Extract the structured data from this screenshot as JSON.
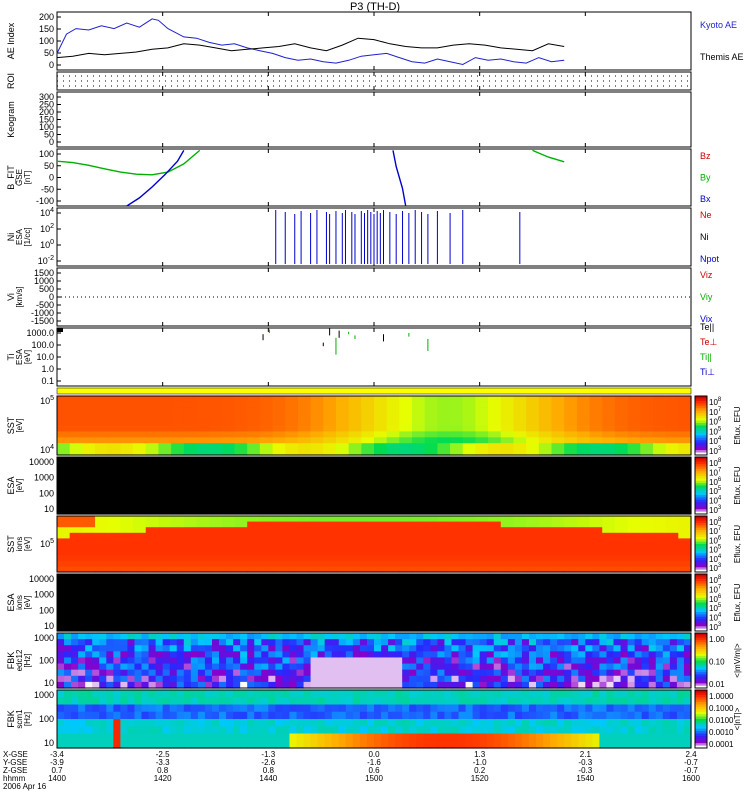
{
  "title": "P3 (TH-D)",
  "colors": {
    "kyoto": "#1f1fd0",
    "themis": "#000000",
    "red": "#cc0000",
    "green": "#00b000",
    "blue": "#0000cc",
    "frame": "#000000"
  },
  "chart_data": [
    {
      "type": "line",
      "panel": "ae",
      "ylabel": "AE Index",
      "yticks": [
        "200",
        "150",
        "100",
        "50",
        "0"
      ],
      "ylim": [
        0,
        210
      ],
      "legend": [
        "Kyoto AE",
        "Themis AE"
      ],
      "series": [
        {
          "name": "Kyoto AE",
          "color": "#1f1fd0",
          "x": [
            1400,
            1403,
            1406,
            1410,
            1414,
            1418,
            1422,
            1426,
            1430,
            1432,
            1435,
            1440,
            1444,
            1448,
            1452,
            1456,
            1460,
            1464,
            1468,
            1472,
            1476,
            1480,
            1484,
            1488,
            1492,
            1496,
            1500,
            1504,
            1508,
            1512,
            1516,
            1520,
            1524,
            1528,
            1532,
            1536,
            1540,
            1544,
            1548,
            1552,
            1556,
            1560
          ],
          "y": [
            60,
            130,
            150,
            145,
            160,
            150,
            170,
            155,
            185,
            180,
            150,
            120,
            115,
            100,
            90,
            95,
            80,
            70,
            60,
            45,
            35,
            40,
            30,
            25,
            35,
            50,
            55,
            60,
            45,
            30,
            25,
            40,
            30,
            20,
            45,
            35,
            40,
            30,
            25,
            45,
            30,
            35
          ]
        },
        {
          "name": "Themis AE",
          "color": "#000000",
          "x": [
            1400,
            1405,
            1410,
            1415,
            1420,
            1425,
            1430,
            1435,
            1440,
            1445,
            1450,
            1455,
            1460,
            1465,
            1470,
            1475,
            1480,
            1485,
            1490,
            1495,
            1500,
            1505,
            1510,
            1515,
            1520,
            1525,
            1530,
            1535,
            1540,
            1545,
            1550,
            1555,
            1560
          ],
          "y": [
            45,
            50,
            60,
            55,
            60,
            65,
            75,
            80,
            95,
            90,
            80,
            70,
            75,
            80,
            85,
            95,
            80,
            70,
            90,
            115,
            110,
            95,
            85,
            80,
            80,
            90,
            95,
            90,
            80,
            75,
            70,
            95,
            85
          ]
        }
      ]
    },
    {
      "type": "line",
      "panel": "roi",
      "ylabel": "ROI",
      "yticks": []
    },
    {
      "type": "line",
      "panel": "kp",
      "ylabel": "Keogram",
      "yticks": [
        "300",
        "250",
        "200",
        "150",
        "100",
        "50",
        "0"
      ]
    },
    {
      "type": "line",
      "panel": "bfit",
      "ylabel": "B_FIT",
      "sublabels": [
        "GSE",
        "[nT]"
      ],
      "yticks": [
        "100",
        "50",
        "0",
        "-50",
        "-100"
      ],
      "ylim": [
        -105,
        105
      ],
      "legend": [
        "Bz",
        "By",
        "Bx"
      ],
      "series": [
        {
          "name": "By",
          "color": "#00b000",
          "x": [
            1400,
            1405,
            1410,
            1415,
            1420,
            1425,
            1430,
            1435,
            1440,
            1445
          ],
          "y": [
            60,
            55,
            45,
            32,
            20,
            12,
            10,
            20,
            50,
            100
          ]
        },
        {
          "name": "By",
          "color": "#00b000",
          "x": [
            1550,
            1555,
            1560
          ],
          "y": [
            100,
            75,
            58
          ]
        },
        {
          "name": "Bx",
          "color": "#0000cc",
          "x": [
            1422,
            1426,
            1430,
            1434,
            1438,
            1440
          ],
          "y": [
            -105,
            -75,
            -35,
            10,
            60,
            100
          ]
        },
        {
          "name": "Bx",
          "color": "#0000cc",
          "x": [
            1506,
            1507,
            1509,
            1510
          ],
          "y": [
            100,
            40,
            -40,
            -105
          ]
        }
      ]
    },
    {
      "type": "bar",
      "panel": "ni",
      "ylabel": "Ni",
      "sublabels": [
        "ESA",
        "[1/cc]"
      ],
      "yticks": [
        "10^4",
        "10^2",
        "10^0",
        "10^-2"
      ],
      "legend": [
        "Ne",
        "Ni",
        "Npot"
      ],
      "spikes_x": [
        1469,
        1472,
        1475,
        1477,
        1480,
        1482,
        1485,
        1486,
        1488,
        1490,
        1491,
        1493,
        1494,
        1496,
        1497,
        1498,
        1499,
        1500,
        1501,
        1502,
        1503,
        1505,
        1507,
        1509,
        1511,
        1513,
        1515,
        1517,
        1520,
        1524,
        1528,
        1546
      ]
    },
    {
      "type": "line",
      "panel": "vi",
      "ylabel": "Vi",
      "sublabels": [
        "[km/s]"
      ],
      "yticks": [
        "1500",
        "1000",
        "500",
        "0",
        "-500",
        "-1000",
        "-1500"
      ],
      "legend": [
        "Viz",
        "Viy",
        "Vix"
      ]
    },
    {
      "type": "scatter",
      "panel": "ti",
      "ylabel": "Ti",
      "sublabels": [
        "ESA",
        "[eV]"
      ],
      "yticks": [
        "1000.0",
        "100.0",
        "10.0",
        "1.0",
        "0.1"
      ],
      "legend": [
        "Te||",
        "Te⊥",
        "Ti||",
        "Ti⊥"
      ],
      "segments": [
        {
          "x": 1465,
          "ylog": [
            2.9,
            2.4
          ],
          "color": "#000000"
        },
        {
          "x": 1467,
          "ylog": [
            3.3,
            3.0
          ],
          "color": "#00b000"
        },
        {
          "x": 1484,
          "ylog": [
            2.2,
            1.9
          ],
          "color": "#000000"
        },
        {
          "x": 1486,
          "ylog": [
            3.4,
            2.8
          ],
          "color": "#000000"
        },
        {
          "x": 1488,
          "ylog": [
            2.6,
            1.2
          ],
          "color": "#00b000"
        },
        {
          "x": 1489,
          "ylog": [
            3.2,
            2.6
          ],
          "color": "#000000"
        },
        {
          "x": 1492,
          "ylog": [
            3.1,
            2.9
          ],
          "color": "#00b000"
        },
        {
          "x": 1494,
          "ylog": [
            2.8,
            2.5
          ],
          "color": "#00b000"
        },
        {
          "x": 1503,
          "ylog": [
            2.9,
            2.3
          ],
          "color": "#000000"
        },
        {
          "x": 1511,
          "ylog": [
            3.0,
            2.7
          ],
          "color": "#00b000"
        },
        {
          "x": 1517,
          "ylog": [
            2.5,
            1.5
          ],
          "color": "#00b000"
        }
      ]
    },
    {
      "type": "heatmap",
      "panel": "sst_e",
      "ylabel": "SST",
      "sublabels": [
        "[eV]"
      ],
      "yticks": [
        "10^5",
        "10^4"
      ],
      "colorbar_label": "Eflux, EFU",
      "colorbar_ticks": [
        "10^8",
        "10^7",
        "10^6",
        "10^5",
        "10^4",
        "10^3"
      ]
    },
    {
      "type": "heatmap",
      "panel": "esa_e",
      "ylabel": "ESA",
      "sublabels": [
        "[eV]"
      ],
      "yticks": [
        "10000",
        "1000",
        "100",
        "10"
      ],
      "colorbar_label": "Eflux, EFU",
      "colorbar_ticks": [
        "10^8",
        "10^7",
        "10^6",
        "10^5",
        "10^4",
        "10^3"
      ]
    },
    {
      "type": "heatmap",
      "panel": "sst_i",
      "ylabel": "SST",
      "sublabels": [
        "ions",
        "[eV]"
      ],
      "yticks": [
        "10^5"
      ],
      "colorbar_label": "Eflux, EFU",
      "colorbar_ticks": [
        "10^8",
        "10^7",
        "10^6",
        "10^5",
        "10^4",
        "10^3"
      ]
    },
    {
      "type": "heatmap",
      "panel": "esa_i",
      "ylabel": "ESA",
      "sublabels": [
        "ions",
        "[eV]"
      ],
      "yticks": [
        "10000",
        "1000",
        "100",
        "10"
      ],
      "colorbar_label": "Eflux, EFU",
      "colorbar_ticks": [
        "10^8",
        "10^7",
        "10^6",
        "10^5",
        "10^4",
        "10^3"
      ]
    },
    {
      "type": "heatmap",
      "panel": "fbk_e",
      "ylabel": "FBK",
      "sublabels": [
        "edc12",
        "[Hz]"
      ],
      "yticks": [
        "1000",
        "100",
        "10"
      ],
      "colorbar_label": "<|mV/m|>",
      "colorbar_ticks": [
        "1.00",
        "0.10",
        "0.01"
      ]
    },
    {
      "type": "heatmap",
      "panel": "fbk_b",
      "ylabel": "FBK",
      "sublabels": [
        "scm1",
        "[Hz]"
      ],
      "yticks": [
        "1000",
        "100",
        "10"
      ],
      "colorbar_label": "<|nT|>",
      "colorbar_ticks": [
        "1.0000",
        "0.1000",
        "0.0100",
        "0.0010",
        "0.0001"
      ]
    }
  ],
  "xaxis": {
    "range": [
      1400,
      1600
    ],
    "row_labels": [
      "X-GSE",
      "Y-GSE",
      "Z-GSE",
      "hhmm",
      "2006 Apr 16"
    ],
    "columns": [
      [
        "-3.4",
        "-2.5",
        "-1.3",
        "0.0",
        "1.3",
        "2.1",
        "2.4"
      ],
      [
        "-3.9",
        "-3.3",
        "-2.6",
        "-1.6",
        "-1.0",
        "-0.3",
        "-0.7"
      ],
      [
        "0.7",
        "0.8",
        "0.8",
        "0.6",
        "0.2",
        "-0.3",
        "-0.7"
      ],
      [
        "1400",
        "1420",
        "1440",
        "1500",
        "1520",
        "1540",
        "1600"
      ]
    ]
  }
}
